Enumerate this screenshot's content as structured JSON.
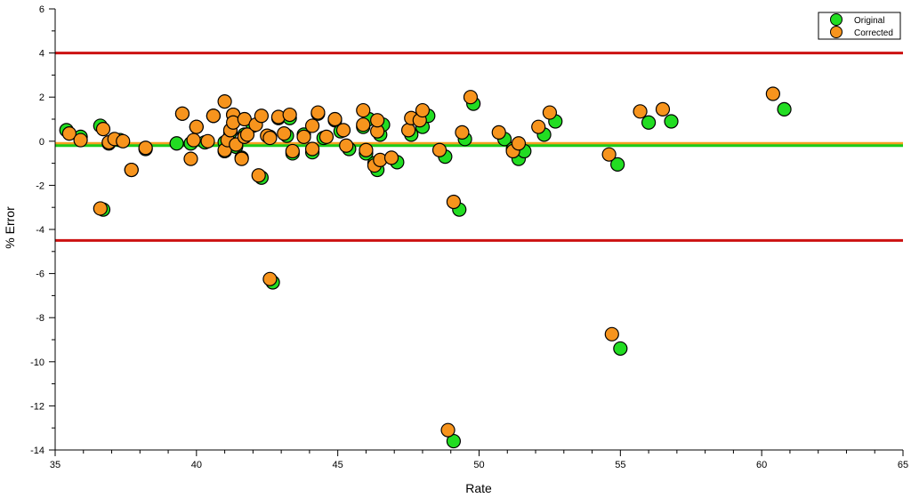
{
  "chart_data": {
    "type": "scatter",
    "title": "",
    "xlabel": "Rate",
    "ylabel": "% Error",
    "xlim": [
      35,
      65
    ],
    "ylim": [
      -14,
      6
    ],
    "x_ticks": [
      35,
      40,
      45,
      50,
      55,
      60,
      65
    ],
    "y_ticks": [
      -14,
      -12,
      -10,
      -8,
      -6,
      -4,
      -2,
      0,
      2,
      4,
      6
    ],
    "grid": false,
    "legend_position": "top-right",
    "reference_lines": [
      {
        "y": 4.0,
        "color": "#cc1111"
      },
      {
        "y": -4.5,
        "color": "#cc1111"
      },
      {
        "y": -0.1,
        "color": "#f5a020"
      },
      {
        "y": -0.2,
        "color": "#1acc1a"
      }
    ],
    "series": [
      {
        "name": "Original",
        "color": "#22dd22",
        "points": [
          [
            35.4,
            0.5
          ],
          [
            35.9,
            0.2
          ],
          [
            36.6,
            0.7
          ],
          [
            36.7,
            -3.1
          ],
          [
            36.9,
            -0.1
          ],
          [
            37.3,
            0.05
          ],
          [
            37.7,
            -1.3
          ],
          [
            38.2,
            -0.35
          ],
          [
            39.3,
            -0.1
          ],
          [
            39.5,
            1.25
          ],
          [
            39.8,
            -0.1
          ],
          [
            40.0,
            0.65
          ],
          [
            40.3,
            -0.05
          ],
          [
            40.6,
            1.15
          ],
          [
            41.0,
            -0.05
          ],
          [
            41.0,
            -0.45
          ],
          [
            41.2,
            0.4
          ],
          [
            41.3,
            1.2
          ],
          [
            41.4,
            -0.25
          ],
          [
            41.6,
            -0.75
          ],
          [
            41.7,
            0.3
          ],
          [
            42.0,
            0.7
          ],
          [
            42.3,
            -1.65
          ],
          [
            42.6,
            0.2
          ],
          [
            42.7,
            -6.4
          ],
          [
            42.9,
            1.05
          ],
          [
            43.2,
            0.25
          ],
          [
            43.3,
            1.05
          ],
          [
            43.4,
            -0.55
          ],
          [
            43.8,
            0.3
          ],
          [
            44.1,
            -0.5
          ],
          [
            44.3,
            1.25
          ],
          [
            44.5,
            0.15
          ],
          [
            44.9,
            0.95
          ],
          [
            45.1,
            0.45
          ],
          [
            45.4,
            -0.35
          ],
          [
            45.9,
            0.65
          ],
          [
            46.0,
            -0.55
          ],
          [
            46.1,
            1.0
          ],
          [
            46.3,
            -1.0
          ],
          [
            46.4,
            -1.3
          ],
          [
            46.5,
            0.3
          ],
          [
            46.6,
            0.75
          ],
          [
            47.1,
            -0.95
          ],
          [
            47.6,
            0.3
          ],
          [
            48.0,
            0.65
          ],
          [
            48.2,
            1.15
          ],
          [
            48.8,
            -0.7
          ],
          [
            49.1,
            -13.6
          ],
          [
            49.3,
            -3.1
          ],
          [
            49.5,
            0.1
          ],
          [
            49.8,
            1.7
          ],
          [
            50.9,
            0.1
          ],
          [
            51.2,
            -0.35
          ],
          [
            51.4,
            -0.8
          ],
          [
            51.6,
            -0.45
          ],
          [
            52.3,
            0.3
          ],
          [
            52.7,
            0.9
          ],
          [
            54.9,
            -1.05
          ],
          [
            55.0,
            -9.4
          ],
          [
            56.0,
            0.85
          ],
          [
            56.8,
            0.9
          ],
          [
            60.8,
            1.45
          ]
        ]
      },
      {
        "name": "Corrected",
        "color": "#f7941d",
        "points": [
          [
            35.5,
            0.35
          ],
          [
            35.9,
            0.05
          ],
          [
            36.6,
            -3.05
          ],
          [
            36.7,
            0.55
          ],
          [
            36.9,
            -0.05
          ],
          [
            37.1,
            0.1
          ],
          [
            37.4,
            0.0
          ],
          [
            37.7,
            -1.3
          ],
          [
            38.2,
            -0.3
          ],
          [
            39.5,
            1.25
          ],
          [
            39.8,
            -0.8
          ],
          [
            39.9,
            0.05
          ],
          [
            40.0,
            0.65
          ],
          [
            40.4,
            0.0
          ],
          [
            40.6,
            1.15
          ],
          [
            41.0,
            1.8
          ],
          [
            41.0,
            -0.4
          ],
          [
            41.1,
            0.05
          ],
          [
            41.2,
            0.5
          ],
          [
            41.3,
            1.2
          ],
          [
            41.3,
            0.85
          ],
          [
            41.4,
            -0.15
          ],
          [
            41.6,
            -0.8
          ],
          [
            41.7,
            1.0
          ],
          [
            41.7,
            0.2
          ],
          [
            41.8,
            0.3
          ],
          [
            42.1,
            0.75
          ],
          [
            42.2,
            -1.55
          ],
          [
            42.3,
            1.15
          ],
          [
            42.5,
            0.25
          ],
          [
            42.6,
            -6.25
          ],
          [
            42.6,
            0.15
          ],
          [
            42.9,
            1.1
          ],
          [
            43.1,
            0.35
          ],
          [
            43.3,
            1.2
          ],
          [
            43.4,
            -0.45
          ],
          [
            43.8,
            0.2
          ],
          [
            44.1,
            -0.35
          ],
          [
            44.1,
            0.7
          ],
          [
            44.3,
            1.3
          ],
          [
            44.6,
            0.2
          ],
          [
            44.9,
            1.0
          ],
          [
            45.2,
            0.5
          ],
          [
            45.3,
            -0.2
          ],
          [
            45.9,
            1.4
          ],
          [
            45.9,
            0.75
          ],
          [
            46.0,
            -0.4
          ],
          [
            46.3,
            -1.1
          ],
          [
            46.4,
            0.45
          ],
          [
            46.4,
            0.95
          ],
          [
            46.5,
            -0.85
          ],
          [
            46.9,
            -0.75
          ],
          [
            47.5,
            0.5
          ],
          [
            47.6,
            1.05
          ],
          [
            47.9,
            0.95
          ],
          [
            48.0,
            1.4
          ],
          [
            48.6,
            -0.4
          ],
          [
            48.9,
            -13.1
          ],
          [
            49.1,
            -2.75
          ],
          [
            49.4,
            0.4
          ],
          [
            49.7,
            2.0
          ],
          [
            50.7,
            0.4
          ],
          [
            51.2,
            -0.45
          ],
          [
            51.4,
            -0.1
          ],
          [
            52.1,
            0.65
          ],
          [
            52.5,
            1.3
          ],
          [
            54.6,
            -0.6
          ],
          [
            54.7,
            -8.75
          ],
          [
            55.7,
            1.35
          ],
          [
            56.5,
            1.45
          ],
          [
            60.4,
            2.15
          ]
        ]
      }
    ]
  }
}
